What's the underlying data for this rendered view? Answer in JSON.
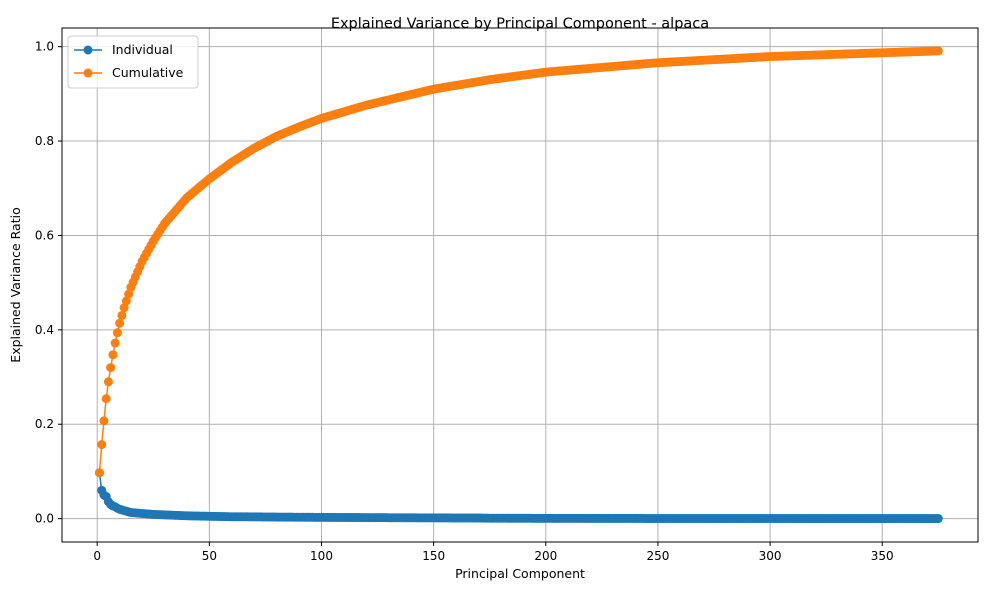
{
  "chart_data": {
    "type": "line",
    "title": "Explained Variance by Principal Component - alpaca",
    "xlabel": "Principal Component",
    "ylabel": "Explained Variance Ratio",
    "xlim": [
      -15.7,
      392.7
    ],
    "ylim": [
      -0.0495,
      1.0395
    ],
    "xticks": [
      0,
      50,
      100,
      150,
      200,
      250,
      300,
      350
    ],
    "yticks": [
      0.0,
      0.2,
      0.4,
      0.6,
      0.8,
      1.0
    ],
    "grid": true,
    "legend_position": "top-left",
    "n_components": 375,
    "series": [
      {
        "name": "Individual",
        "color": "#1f77b4",
        "marker": "circle",
        "x": [
          1,
          2,
          3,
          4,
          5,
          6,
          7,
          8,
          9,
          10,
          12,
          15,
          20,
          25,
          30,
          40,
          50,
          60,
          70,
          80,
          100,
          120,
          150,
          170,
          175,
          200,
          250,
          300,
          350,
          375
        ],
        "values": [
          0.097,
          0.06,
          0.05,
          0.047,
          0.036,
          0.03,
          0.027,
          0.025,
          0.022,
          0.02,
          0.017,
          0.013,
          0.011,
          0.009,
          0.008,
          0.006,
          0.005,
          0.004,
          0.0038,
          0.0033,
          0.0027,
          0.0022,
          0.0016,
          0.0013,
          0.0009,
          0.0006,
          0.0004,
          0.0003,
          0.0002,
          0.0002
        ]
      },
      {
        "name": "Cumulative",
        "color": "#ff7f0e",
        "marker": "circle",
        "x": [
          1,
          2,
          3,
          4,
          5,
          6,
          7,
          8,
          9,
          10,
          12,
          15,
          20,
          25,
          30,
          40,
          50,
          60,
          70,
          80,
          90,
          100,
          120,
          150,
          175,
          200,
          250,
          300,
          350,
          375
        ],
        "values": [
          0.097,
          0.157,
          0.207,
          0.254,
          0.29,
          0.32,
          0.347,
          0.372,
          0.394,
          0.414,
          0.447,
          0.49,
          0.545,
          0.588,
          0.625,
          0.68,
          0.72,
          0.755,
          0.785,
          0.81,
          0.83,
          0.848,
          0.876,
          0.91,
          0.93,
          0.946,
          0.966,
          0.979,
          0.987,
          0.991
        ]
      }
    ]
  }
}
